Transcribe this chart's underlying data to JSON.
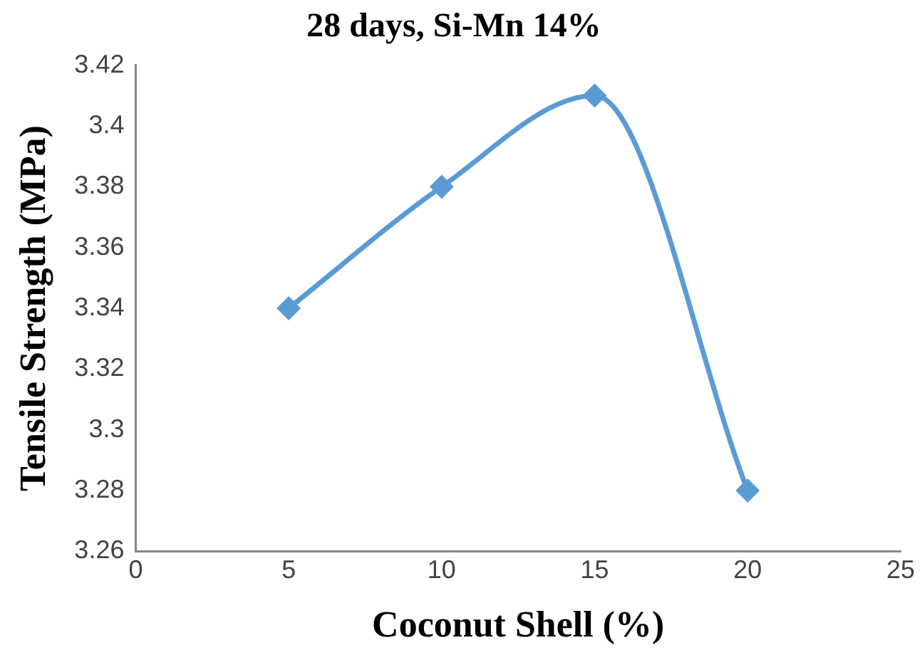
{
  "chart_data": {
    "type": "line",
    "title": "28 days, Si-Mn 14%",
    "xlabel": "Coconut Shell (%)",
    "ylabel": "Tensile Strength (MPa)",
    "x": [
      5,
      10,
      15,
      20
    ],
    "series": [
      {
        "color": "#5b9bd5",
        "values": [
          3.34,
          3.38,
          3.41,
          3.28
        ]
      }
    ],
    "xlim": [
      0,
      25
    ],
    "xticks": [
      0,
      5,
      10,
      15,
      20,
      25
    ],
    "ylim": [
      3.26,
      3.42
    ],
    "yticks": [
      3.26,
      3.28,
      3.3,
      3.32,
      3.34,
      3.36,
      3.38,
      3.4,
      3.42
    ],
    "grid": false,
    "legend": false,
    "marker": "diamond",
    "line_style": "solid"
  }
}
